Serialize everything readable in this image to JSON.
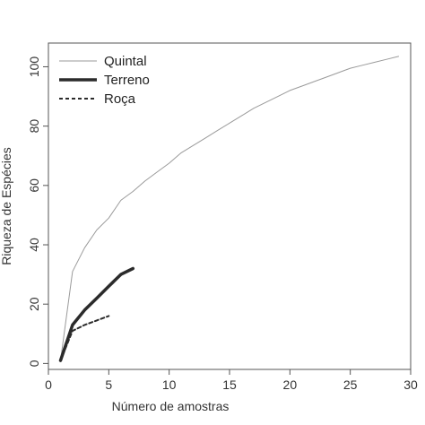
{
  "chart_data": {
    "type": "line",
    "xlabel": "Número de amostras",
    "ylabel": "Riqueza de Espécies",
    "xlim": [
      0,
      30
    ],
    "ylim": [
      -2,
      108
    ],
    "xticks": [
      0,
      5,
      10,
      15,
      20,
      25,
      30
    ],
    "yticks": [
      0,
      20,
      40,
      60,
      80,
      100
    ],
    "grid": false,
    "legend_position": "top-left",
    "series": [
      {
        "name": "Quintal",
        "style": "thin-gray",
        "color": "#9a9a9a",
        "x": [
          1,
          2,
          3,
          4,
          5,
          6,
          7,
          8,
          9,
          10,
          11,
          12,
          13,
          14,
          15,
          16,
          17,
          18,
          19,
          20,
          21,
          22,
          23,
          24,
          25,
          26,
          27,
          28,
          29
        ],
        "y": [
          1,
          31,
          39,
          45,
          49,
          55,
          58,
          61.5,
          64.5,
          67.5,
          71,
          73.5,
          76,
          78.5,
          81,
          83.5,
          86,
          88,
          90,
          92,
          93.5,
          95,
          96.5,
          98,
          99.5,
          100.5,
          101.5,
          102.5,
          103.5
        ]
      },
      {
        "name": "Terreno",
        "style": "thick-solid",
        "color": "#2b2b2b",
        "x": [
          1,
          2,
          3,
          4,
          5,
          6,
          7
        ],
        "y": [
          1,
          13,
          18,
          22,
          26,
          30,
          32
        ]
      },
      {
        "name": "Roça",
        "style": "dashed",
        "color": "#2b2b2b",
        "x": [
          1,
          2,
          3,
          4,
          5
        ],
        "y": [
          1,
          11,
          13,
          14.5,
          16
        ]
      }
    ]
  }
}
